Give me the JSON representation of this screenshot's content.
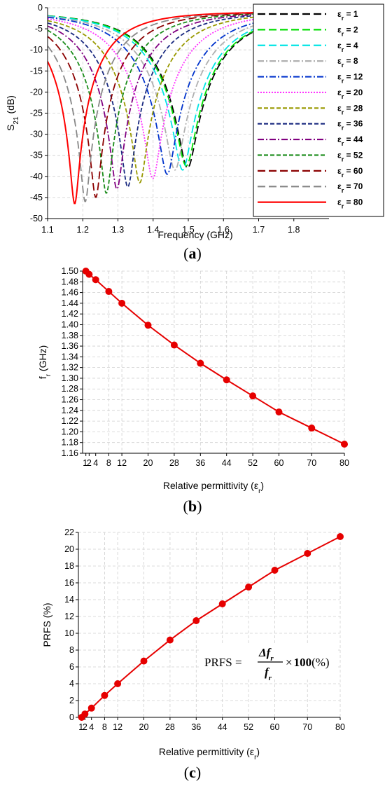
{
  "panel_labels": [
    "a",
    "b",
    "c"
  ],
  "chart_data": [
    {
      "type": "line",
      "xlabel": "Frequency (GHz)",
      "ylabel_main": "S",
      "ylabel_sub": "21",
      "ylabel_unit": " (dB)",
      "xlim": [
        1.1,
        1.9
      ],
      "ylim": [
        -50,
        0
      ],
      "x_ticks": [
        "1.1",
        "1.2",
        "1.3",
        "1.4",
        "1.5",
        "1.6",
        "1.7",
        "1.8"
      ],
      "y_ticks": [
        "0",
        "-5",
        "-10",
        "-15",
        "-20",
        "-25",
        "-30",
        "-35",
        "-40",
        "-45",
        "-50"
      ],
      "legend_prefix": "ε",
      "legend_sub": "r",
      "legend_placement": "right",
      "series": [
        {
          "name": " = 1",
          "color": "#000000",
          "dash": "long-dash",
          "f0": 1.498,
          "min": -38.0
        },
        {
          "name": " = 2",
          "color": "#00dd00",
          "dash": "long-dash",
          "f0": 1.494,
          "min": -37.5
        },
        {
          "name": " = 4",
          "color": "#00e5e5",
          "dash": "long-dash",
          "f0": 1.484,
          "min": -38.5
        },
        {
          "name": " = 8",
          "color": "#b0b0b0",
          "dash": "dash-dot",
          "f0": 1.462,
          "min": -38.5
        },
        {
          "name": " = 12",
          "color": "#0033cc",
          "dash": "dash-dot",
          "f0": 1.44,
          "min": -39.5
        },
        {
          "name": " = 20",
          "color": "#ff33ff",
          "dash": "dot",
          "f0": 1.399,
          "min": -40.5
        },
        {
          "name": " = 28",
          "color": "#999900",
          "dash": "dash",
          "f0": 1.362,
          "min": -41.5
        },
        {
          "name": " = 36",
          "color": "#1a2a80",
          "dash": "dash",
          "f0": 1.328,
          "min": -42.5
        },
        {
          "name": " = 44",
          "color": "#800080",
          "dash": "dash-dot",
          "f0": 1.297,
          "min": -43.0
        },
        {
          "name": " = 52",
          "color": "#1a8c1a",
          "dash": "dash",
          "f0": 1.267,
          "min": -44.0
        },
        {
          "name": " = 60",
          "color": "#8b0000",
          "dash": "long-dash",
          "f0": 1.237,
          "min": -45.0
        },
        {
          "name": " = 70",
          "color": "#888888",
          "dash": "long-dash",
          "f0": 1.207,
          "min": -46.0
        },
        {
          "name": " = 80",
          "color": "#ff0000",
          "dash": "solid",
          "f0": 1.177,
          "min": -46.5
        }
      ]
    },
    {
      "type": "line",
      "xlabel": "Relative permittivity (ε",
      "xlabel_sub": "r",
      "xlabel_end": ")",
      "ylabel_main": "f",
      "ylabel_sub": "r",
      "ylabel_unit": " (GHz)",
      "xlim": [
        0,
        80
      ],
      "ylim": [
        1.16,
        1.5
      ],
      "x_tick_values": [
        1,
        2,
        4,
        8,
        12,
        20,
        28,
        36,
        44,
        52,
        60,
        70,
        80
      ],
      "x_tick_labels": [
        "1",
        "2",
        "4",
        "8",
        "12",
        "20",
        "28",
        "36",
        "44",
        "52",
        "60",
        "70",
        "80"
      ],
      "y_ticks": [
        "1.16",
        "1.18",
        "1.20",
        "1.22",
        "1.24",
        "1.26",
        "1.28",
        "1.30",
        "1.32",
        "1.34",
        "1.36",
        "1.38",
        "1.40",
        "1.42",
        "1.44",
        "1.46",
        "1.48",
        "1.50"
      ],
      "color": "#e60000",
      "x": [
        1,
        2,
        4,
        8,
        12,
        20,
        28,
        36,
        44,
        52,
        60,
        70,
        80
      ],
      "y": [
        1.5,
        1.494,
        1.484,
        1.462,
        1.44,
        1.399,
        1.362,
        1.328,
        1.297,
        1.267,
        1.237,
        1.207,
        1.177
      ]
    },
    {
      "type": "line",
      "xlabel": "Relative permittivity (ε",
      "xlabel_sub": "r",
      "xlabel_end": ")",
      "ylabel": "PRFS (%)",
      "xlim": [
        0,
        80
      ],
      "ylim": [
        0,
        22
      ],
      "x_tick_values": [
        1,
        2,
        4,
        8,
        12,
        20,
        28,
        36,
        44,
        52,
        60,
        70,
        80
      ],
      "x_tick_labels": [
        "1",
        "2",
        "4",
        "8",
        "12",
        "20",
        "28",
        "36",
        "44",
        "52",
        "60",
        "70",
        "80"
      ],
      "y_ticks": [
        "0",
        "2",
        "4",
        "6",
        "8",
        "10",
        "12",
        "14",
        "16",
        "18",
        "20",
        "22"
      ],
      "color": "#e60000",
      "x": [
        1,
        2,
        4,
        8,
        12,
        20,
        28,
        36,
        44,
        52,
        60,
        70,
        80
      ],
      "y": [
        0.0,
        0.4,
        1.1,
        2.6,
        4.0,
        6.7,
        9.2,
        11.5,
        13.5,
        15.5,
        17.5,
        19.5,
        21.5
      ],
      "formula": {
        "lhs": "PRFS =",
        "num": "Δf",
        "den": "f",
        "sub": "r",
        "times": "×",
        "factor": "100",
        "unit": "(%)"
      }
    }
  ]
}
